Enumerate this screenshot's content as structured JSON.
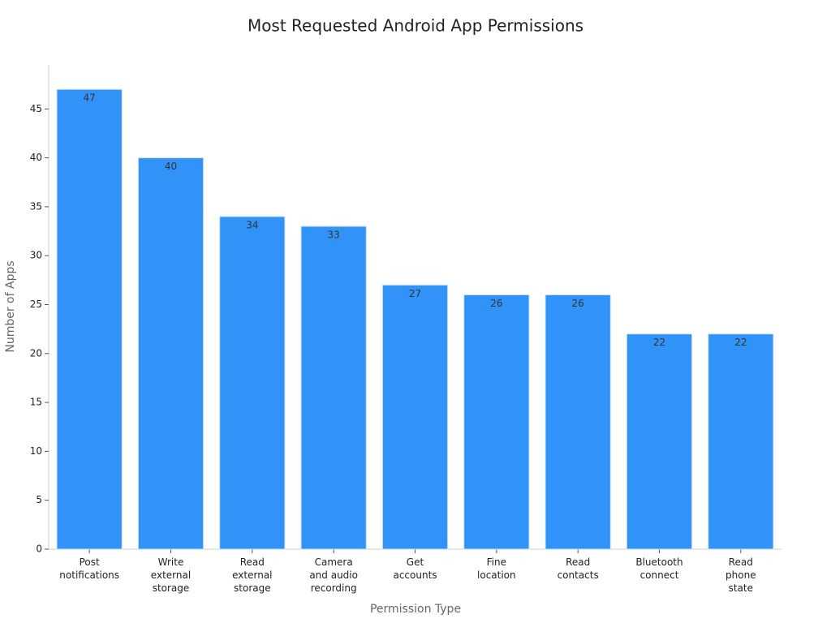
{
  "chart_data": {
    "type": "bar",
    "title": "Most Requested Android App Permissions",
    "x_label": "Permission Type",
    "y_label": "Number of Apps",
    "categories": [
      "Post\nnotifications",
      "Write\nexternal\nstorage",
      "Read\nexternal\nstorage",
      "Camera\nand audio\nrecording",
      "Get\naccounts",
      "Fine\nlocation",
      "Read\ncontacts",
      "Bluetooth\nconnect",
      "Read\nphone\nstate"
    ],
    "values": [
      47,
      40,
      34,
      33,
      27,
      26,
      26,
      22,
      22
    ],
    "color": "#3192f8",
    "ylim": [
      0,
      49.5
    ],
    "yticks": [
      0,
      5,
      10,
      15,
      20,
      25,
      30,
      35,
      40,
      45
    ],
    "grid": false
  }
}
